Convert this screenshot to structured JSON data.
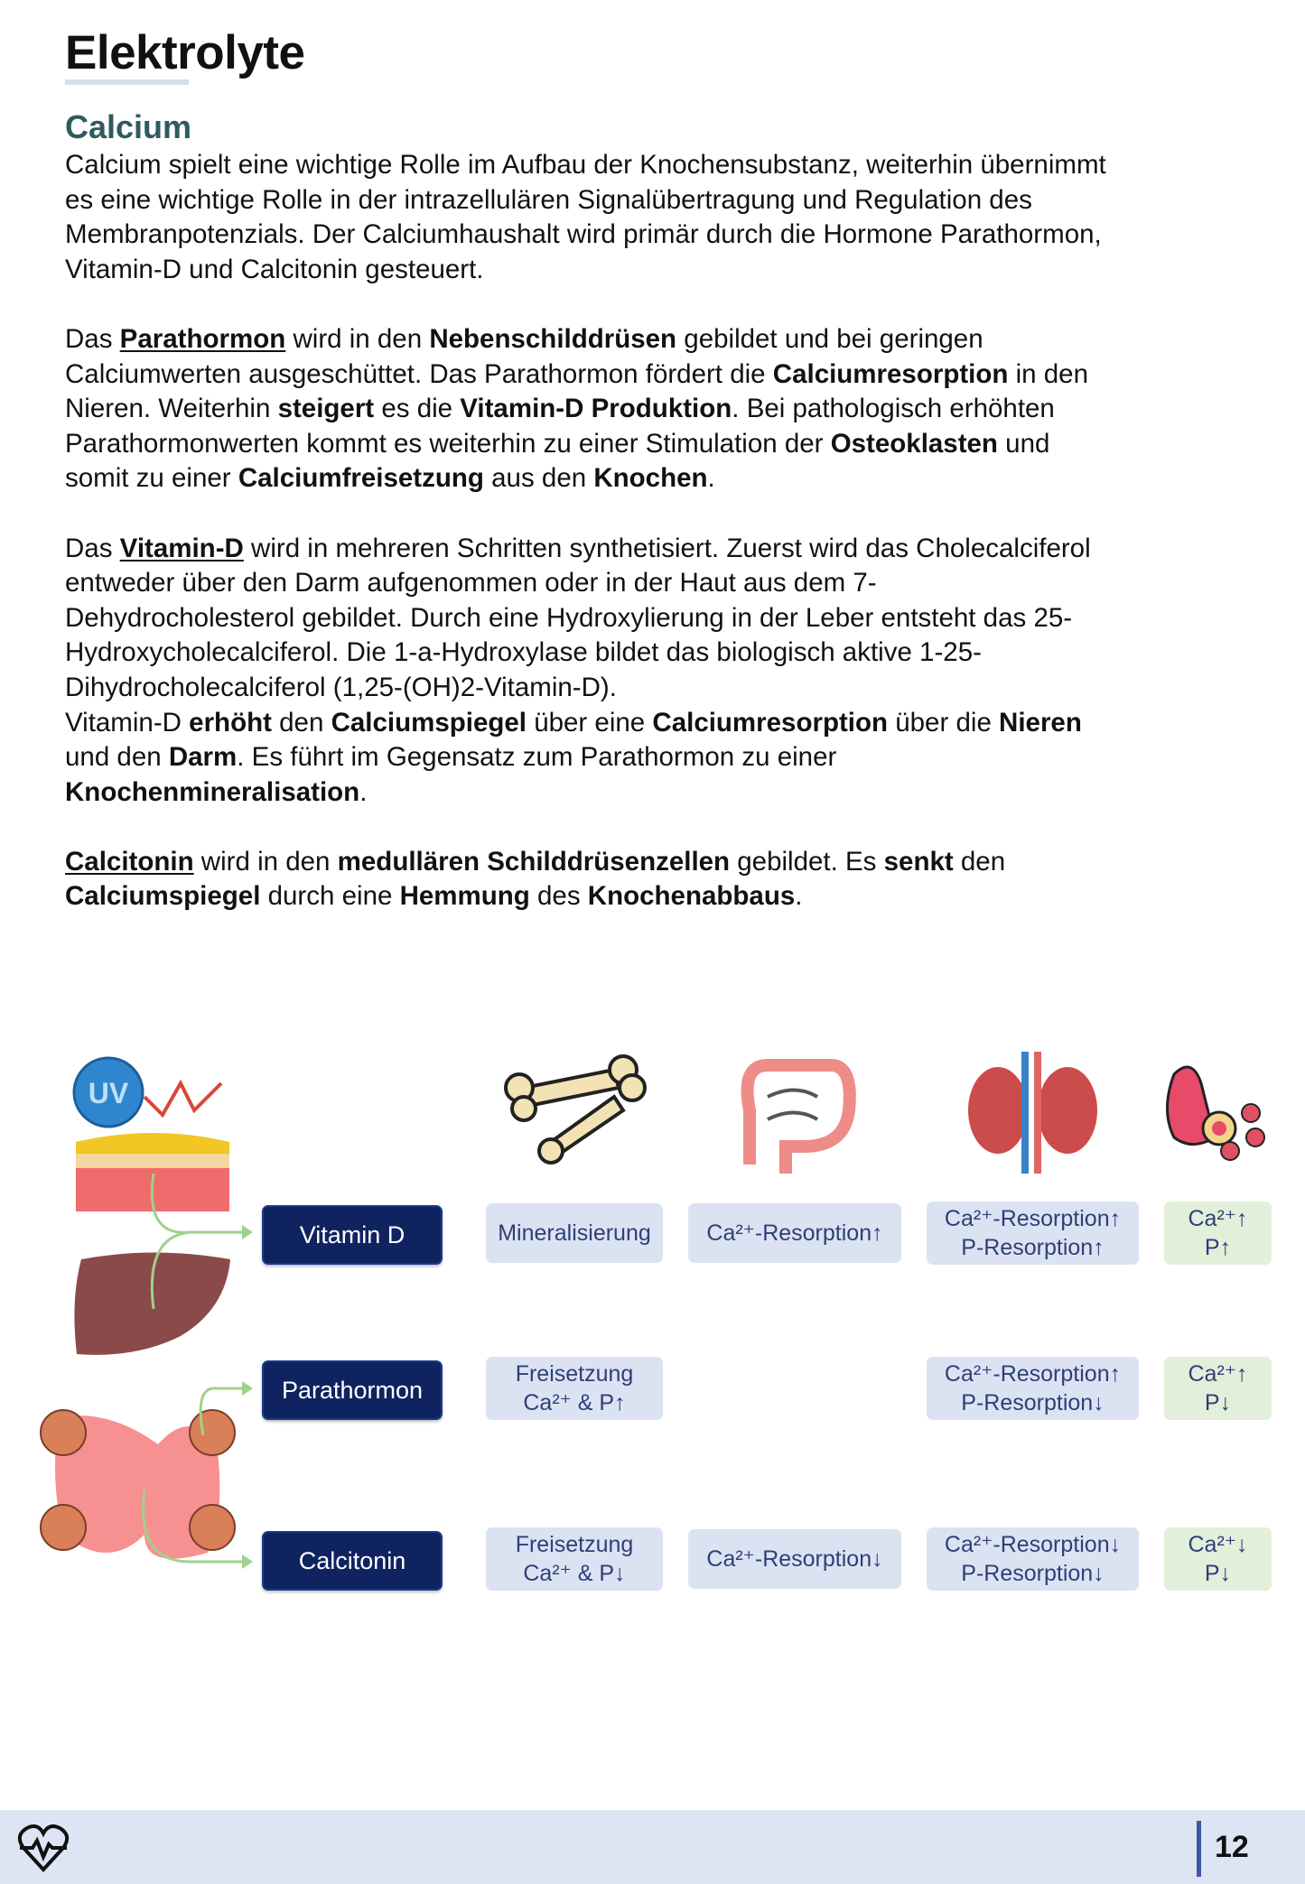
{
  "title": "Elektrolyte",
  "section": "Calcium",
  "body_lines": [
    [
      {
        "t": "Calcium spielt eine wichtige Rolle im Aufbau der Knochensubstanz, weiterhin übernimmt"
      }
    ],
    [
      {
        "t": "es eine wichtige Rolle in der intrazellulären Signalübertragung und Regulation des"
      }
    ],
    [
      {
        "t": "Membranpotenzials. Der Calciumhaushalt wird primär durch die Hormone Parathormon,"
      }
    ],
    [
      {
        "t": "Vitamin-D und Calcitonin gesteuert."
      }
    ],
    [],
    [
      {
        "t": "Das "
      },
      {
        "t": "Parathormon",
        "b": true,
        "u": true
      },
      {
        "t": " wird in den "
      },
      {
        "t": "Nebenschilddrüsen",
        "b": true
      },
      {
        "t": " gebildet und bei geringen"
      }
    ],
    [
      {
        "t": "Calciumwerten ausgeschüttet. Das Parathormon fördert die "
      },
      {
        "t": "Calciumresorption",
        "b": true
      },
      {
        "t": " in den"
      }
    ],
    [
      {
        "t": "Nieren. Weiterhin "
      },
      {
        "t": "steigert",
        "b": true
      },
      {
        "t": " es die "
      },
      {
        "t": "Vitamin-D Produktion",
        "b": true
      },
      {
        "t": ". Bei pathologisch erhöhten"
      }
    ],
    [
      {
        "t": "Parathormonwerten kommt es weiterhin zu einer Stimulation der "
      },
      {
        "t": "Osteoklasten",
        "b": true
      },
      {
        "t": " und"
      }
    ],
    [
      {
        "t": "somit zu einer "
      },
      {
        "t": "Calciumfreisetzung",
        "b": true
      },
      {
        "t": " aus den "
      },
      {
        "t": "Knochen",
        "b": true
      },
      {
        "t": "."
      }
    ],
    [],
    [
      {
        "t": "Das "
      },
      {
        "t": "Vitamin-D",
        "b": true,
        "u": true
      },
      {
        "t": " wird in mehreren Schritten synthetisiert. Zuerst wird das Cholecalciferol"
      }
    ],
    [
      {
        "t": "entweder über den Darm aufgenommen oder in der Haut aus dem 7-"
      }
    ],
    [
      {
        "t": "Dehydrocholesterol gebildet. Durch eine Hydroxylierung in der Leber entsteht das 25-"
      }
    ],
    [
      {
        "t": "Hydroxycholecalciferol. Die 1-a-Hydroxylase bildet das biologisch aktive 1-25-"
      }
    ],
    [
      {
        "t": "Dihydrocholecalciferol (1,25-(OH)2-Vitamin-D)."
      }
    ],
    [
      {
        "t": "Vitamin-D "
      },
      {
        "t": "erhöht",
        "b": true
      },
      {
        "t": " den "
      },
      {
        "t": "Calciumspiegel",
        "b": true
      },
      {
        "t": " über eine "
      },
      {
        "t": "Calciumresorption",
        "b": true
      },
      {
        "t": " über die "
      },
      {
        "t": "Nieren",
        "b": true
      }
    ],
    [
      {
        "t": "und den "
      },
      {
        "t": "Darm",
        "b": true
      },
      {
        "t": ". Es führt im Gegensatz zum Parathormon zu einer"
      }
    ],
    [
      {
        "t": "Knochenmineralisation",
        "b": true
      },
      {
        "t": "."
      }
    ],
    [],
    [
      {
        "t": "Calcitonin",
        "b": true,
        "u": true
      },
      {
        "t": " wird in den "
      },
      {
        "t": "medullären Schilddrüsenzellen",
        "b": true
      },
      {
        "t": " gebildet. Es "
      },
      {
        "t": "senkt",
        "b": true
      },
      {
        "t": " den"
      }
    ],
    [
      {
        "t": "Calciumspiegel",
        "b": true
      },
      {
        "t": " durch eine "
      },
      {
        "t": "Hemmung",
        "b": true
      },
      {
        "t": " des "
      },
      {
        "t": "Knochenabbaus",
        "b": true
      },
      {
        "t": "."
      }
    ]
  ],
  "diagram": {
    "uv_label": "UV",
    "columns_icons": [
      "bone-icon",
      "intestine-icon",
      "kidney-icon",
      "blood-vessel-icon"
    ],
    "rows": [
      {
        "hormone": "Vitamin D",
        "bone": [
          "Mineralisierung"
        ],
        "intestine": [
          "Ca²⁺-Resorption↑"
        ],
        "kidney": [
          "Ca²⁺-Resorption↑",
          "P-Resorption↑"
        ],
        "blood": [
          "Ca²⁺↑",
          "P↑"
        ]
      },
      {
        "hormone": "Parathormon",
        "bone": [
          "Freisetzung",
          "Ca²⁺ & P↑"
        ],
        "intestine": [],
        "kidney": [
          "Ca²⁺-Resorption↑",
          "P-Resorption↓"
        ],
        "blood": [
          "Ca²⁺↑",
          "P↓"
        ]
      },
      {
        "hormone": "Calcitonin",
        "bone": [
          "Freisetzung",
          "Ca²⁺ & P↓"
        ],
        "intestine": [
          "Ca²⁺-Resorption↓"
        ],
        "kidney": [
          "Ca²⁺-Resorption↓",
          "P-Resorption↓"
        ],
        "blood": [
          "Ca²⁺↓",
          "P↓"
        ]
      }
    ],
    "colors": {
      "hormone_box": "#0f2360",
      "effect_box": "#dbe3f3",
      "result_box": "#e2efda",
      "arrow": "#8fcf7e"
    }
  },
  "footer": {
    "page_number": "12",
    "icon": "heart-pulse-icon"
  }
}
